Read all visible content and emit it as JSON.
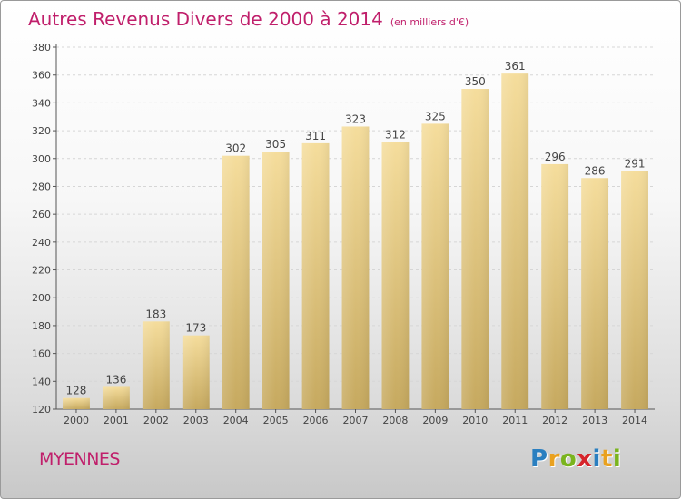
{
  "title": "Autres Revenus Divers de 2000 à 2014",
  "subtitle": "(en milliers d'€)",
  "commune": "MYENNES",
  "logo": {
    "letters": [
      "P",
      "r",
      "o",
      "x",
      "i",
      "t",
      "i"
    ],
    "colors": [
      "#2a7fc0",
      "#e9a11f",
      "#7ab41e",
      "#d6242b",
      "#2a7fc0",
      "#e9a11f",
      "#7ab41e"
    ]
  },
  "colors": {
    "title": "#c01f6b",
    "bar_light": "#f5dd9c",
    "bar_dark": "#c6a95f",
    "axis": "#555555",
    "grid": "#d6d6d6"
  },
  "chart_data": {
    "type": "bar",
    "categories": [
      "2000",
      "2001",
      "2002",
      "2003",
      "2004",
      "2005",
      "2006",
      "2007",
      "2008",
      "2009",
      "2010",
      "2011",
      "2012",
      "2013",
      "2014"
    ],
    "values": [
      128,
      136,
      183,
      173,
      302,
      305,
      311,
      323,
      312,
      325,
      350,
      361,
      296,
      286,
      291
    ],
    "ylim": [
      120,
      380
    ],
    "yticks": [
      120,
      140,
      160,
      180,
      200,
      220,
      240,
      260,
      280,
      300,
      320,
      340,
      360,
      380
    ],
    "grid": true,
    "data_labels": true
  }
}
